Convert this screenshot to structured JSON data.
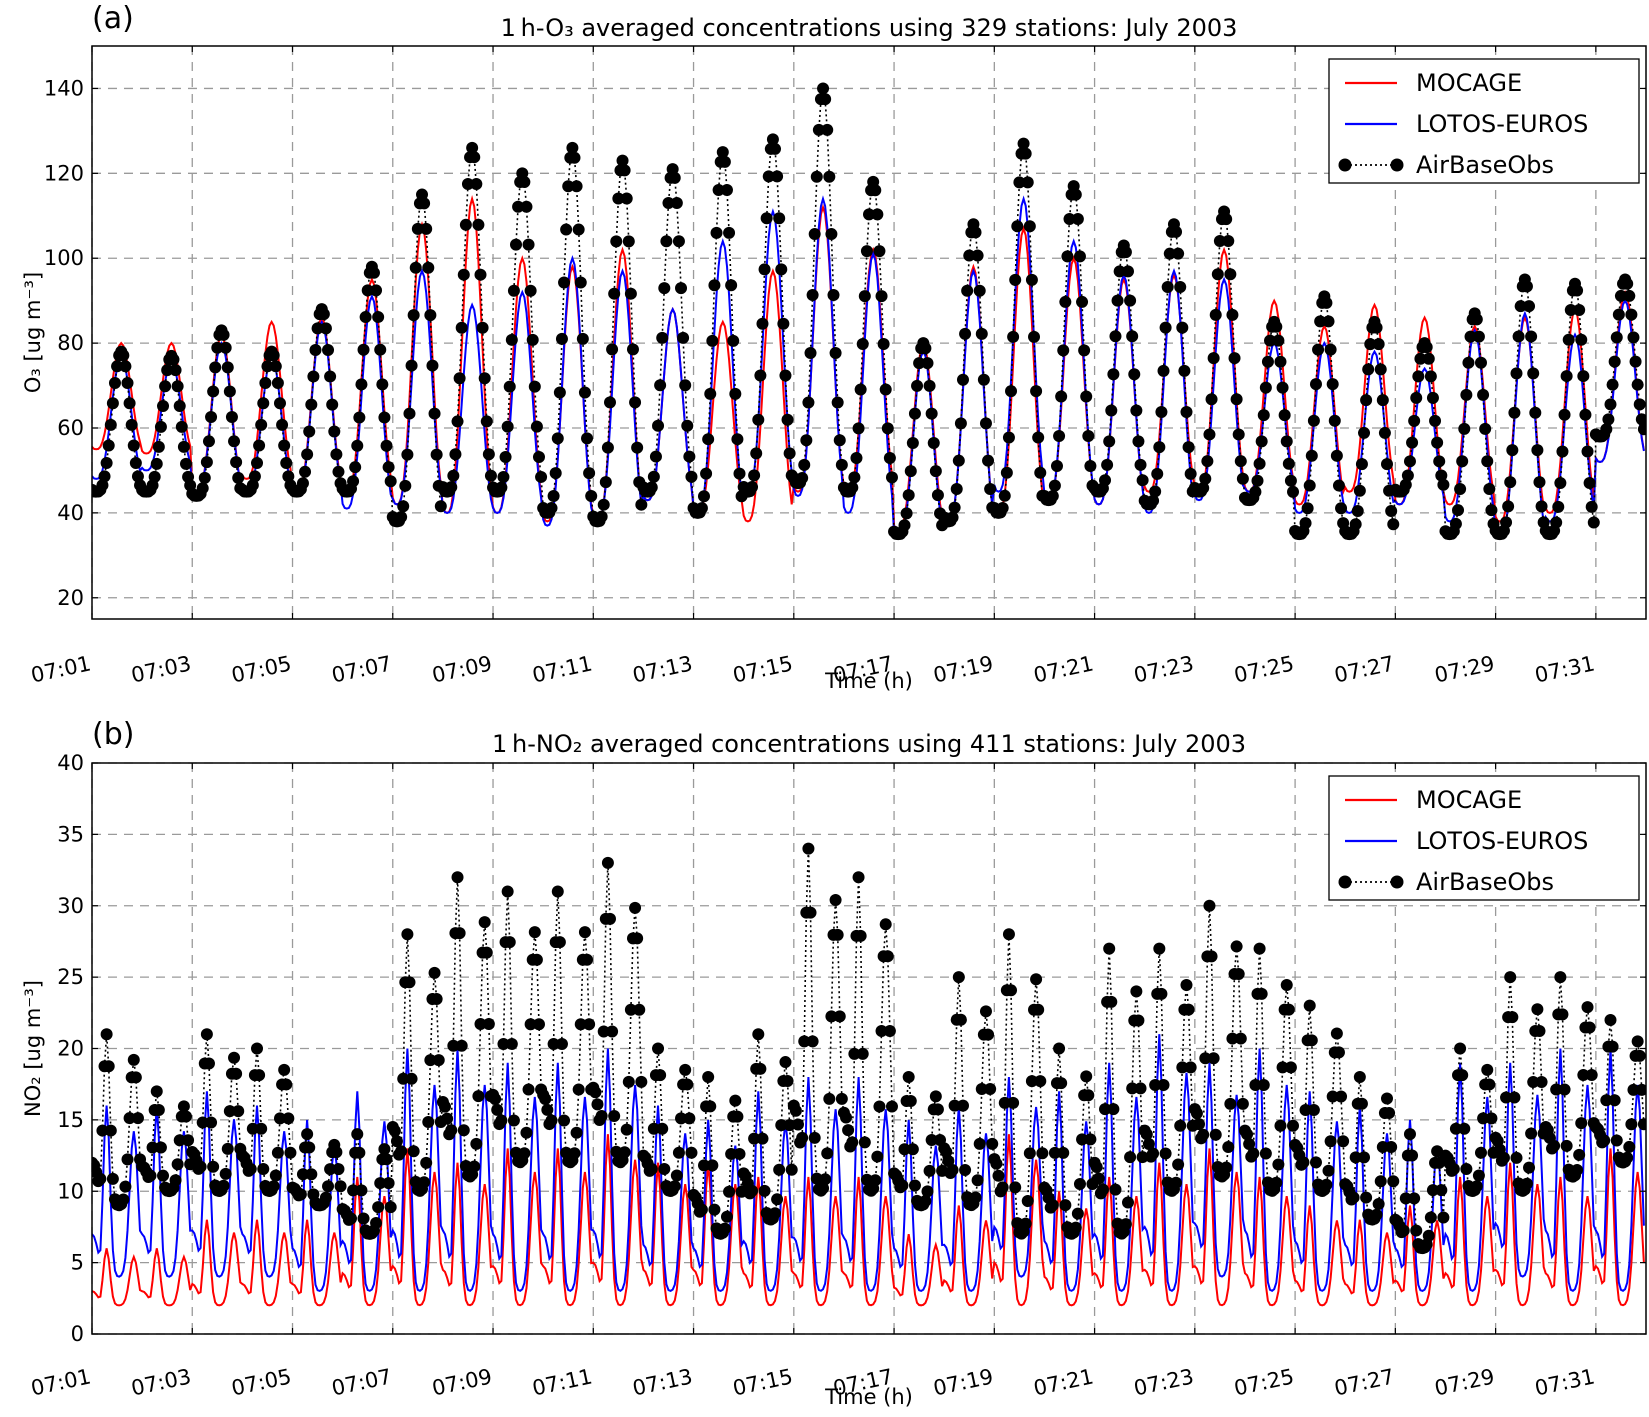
{
  "chart_data": [
    {
      "type": "line",
      "panel_label": "(a)",
      "title": "1 h-O₃ averaged concentrations using 329 stations: July 2003",
      "xlabel": "Time (h)",
      "ylabel": "O₃ [ug m⁻³]",
      "ylim": [
        15,
        150
      ],
      "yticks": [
        20,
        40,
        60,
        80,
        100,
        120,
        140
      ],
      "xlim": [
        "07:01 00h",
        "07:31 24h"
      ],
      "xticks": [
        "07:01",
        "07:03",
        "07:05",
        "07:07",
        "07:09",
        "07:11",
        "07:13",
        "07:15",
        "07:17",
        "07:19",
        "07:21",
        "07:23",
        "07:25",
        "07:27",
        "07:29",
        "07:31"
      ],
      "grid": true,
      "legend_position": "top-right",
      "days": [
        "07:01",
        "07:02",
        "07:03",
        "07:04",
        "07:05",
        "07:06",
        "07:07",
        "07:08",
        "07:09",
        "07:10",
        "07:11",
        "07:12",
        "07:13",
        "07:14",
        "07:15",
        "07:16",
        "07:17",
        "07:18",
        "07:19",
        "07:20",
        "07:21",
        "07:22",
        "07:23",
        "07:24",
        "07:25",
        "07:26",
        "07:27",
        "07:28",
        "07:29",
        "07:30",
        "07:31"
      ],
      "series": [
        {
          "name": "MOCAGE",
          "color": "#ff0000",
          "style": "line",
          "daily_min": [
            55,
            54,
            45,
            48,
            45,
            45,
            42,
            40,
            40,
            38,
            38,
            43,
            40,
            38,
            45,
            45,
            36,
            38,
            40,
            43,
            42,
            45,
            45,
            45,
            42,
            45,
            42,
            42,
            38,
            40,
            52
          ],
          "daily_max": [
            80,
            80,
            82,
            85,
            86,
            95,
            108,
            114,
            100,
            98,
            102,
            88,
            85,
            97,
            112,
            102,
            80,
            98,
            107,
            100,
            95,
            96,
            102,
            90,
            84,
            89,
            86,
            84,
            86,
            88,
            92
          ]
        },
        {
          "name": "LOTOS-EUROS",
          "color": "#0000ff",
          "style": "line",
          "daily_min": [
            48,
            50,
            45,
            45,
            44,
            41,
            42,
            40,
            40,
            37,
            38,
            43,
            40,
            45,
            44,
            40,
            34,
            38,
            45,
            43,
            42,
            40,
            43,
            45,
            40,
            40,
            42,
            38,
            34,
            38,
            52
          ],
          "daily_max": [
            77,
            76,
            80,
            77,
            85,
            91,
            97,
            89,
            92,
            100,
            97,
            88,
            104,
            111,
            114,
            101,
            78,
            97,
            114,
            104,
            96,
            97,
            95,
            80,
            80,
            78,
            74,
            83,
            87,
            82,
            90
          ]
        },
        {
          "name": "AirBaseObs",
          "color": "#000000",
          "style": "dotted-markers",
          "daily_min": [
            45,
            45,
            44,
            45,
            45,
            45,
            38,
            45,
            45,
            40,
            38,
            45,
            40,
            45,
            47,
            45,
            35,
            38,
            40,
            43,
            45,
            42,
            45,
            43,
            35,
            35,
            45,
            35,
            35,
            35,
            58
          ],
          "daily_max": [
            78,
            77,
            83,
            78,
            88,
            98,
            115,
            126,
            120,
            126,
            123,
            121,
            125,
            128,
            140,
            118,
            80,
            108,
            127,
            117,
            103,
            108,
            111,
            85,
            91,
            85,
            80,
            87,
            95,
            94,
            95
          ]
        }
      ]
    },
    {
      "type": "line",
      "panel_label": "(b)",
      "title": "1 h-NO₂ averaged concentrations using 411 stations: July 2003",
      "xlabel": "Time (h)",
      "ylabel": "NO₂ [ug m⁻³]",
      "ylim": [
        0,
        40
      ],
      "yticks": [
        0,
        5,
        10,
        15,
        20,
        25,
        30,
        35,
        40
      ],
      "xlim": [
        "07:01 00h",
        "07:31 24h"
      ],
      "xticks": [
        "07:01",
        "07:03",
        "07:05",
        "07:07",
        "07:09",
        "07:11",
        "07:13",
        "07:15",
        "07:17",
        "07:19",
        "07:21",
        "07:23",
        "07:25",
        "07:27",
        "07:29",
        "07:31"
      ],
      "grid": true,
      "legend_position": "top-right",
      "days": [
        "07:01",
        "07:02",
        "07:03",
        "07:04",
        "07:05",
        "07:06",
        "07:07",
        "07:08",
        "07:09",
        "07:10",
        "07:11",
        "07:12",
        "07:13",
        "07:14",
        "07:15",
        "07:16",
        "07:17",
        "07:18",
        "07:19",
        "07:20",
        "07:21",
        "07:22",
        "07:23",
        "07:24",
        "07:25",
        "07:26",
        "07:27",
        "07:28",
        "07:29",
        "07:30",
        "07:31"
      ],
      "series": [
        {
          "name": "MOCAGE",
          "color": "#ff0000",
          "style": "line",
          "daily_min": [
            2,
            2,
            2,
            2,
            2,
            2,
            2,
            2,
            2,
            2,
            2,
            2,
            2,
            2,
            2,
            2,
            2,
            2,
            2,
            2,
            2,
            2,
            2,
            2,
            2,
            2,
            2,
            2,
            2,
            2,
            2
          ],
          "daily_max": [
            6,
            6,
            8,
            8,
            8,
            11,
            13,
            12,
            13,
            13,
            14,
            12,
            12,
            11,
            11,
            11,
            7,
            9,
            14,
            10,
            11,
            12,
            13,
            11,
            9,
            8,
            9,
            11,
            12,
            11,
            13
          ]
        },
        {
          "name": "LOTOS-EUROS",
          "color": "#0000ff",
          "style": "line",
          "daily_min": [
            4,
            4,
            4,
            4,
            3,
            3,
            3,
            3,
            3,
            3,
            3,
            3,
            3,
            3,
            3,
            3,
            3,
            3,
            4,
            3,
            3,
            3,
            4,
            3,
            3,
            3,
            3,
            3,
            4,
            3,
            3
          ],
          "daily_max": [
            16,
            16,
            17,
            16,
            15,
            17,
            20,
            20,
            19,
            19,
            20,
            16,
            15,
            17,
            18,
            18,
            15,
            16,
            18,
            17,
            19,
            21,
            19,
            20,
            17,
            16,
            15,
            19,
            19,
            20,
            20
          ]
        },
        {
          "name": "AirBaseObs",
          "color": "#000000",
          "style": "dotted-markers",
          "daily_min": [
            9,
            10,
            10,
            10,
            9,
            7,
            10,
            11,
            12,
            12,
            12,
            10,
            7,
            8,
            10,
            10,
            9,
            9,
            7,
            7,
            7,
            10,
            11,
            10,
            10,
            8,
            6,
            10,
            10,
            11,
            12
          ],
          "daily_max": [
            21,
            17,
            21,
            20,
            14,
            14,
            28,
            32,
            31,
            31,
            33,
            20,
            18,
            21,
            34,
            32,
            18,
            25,
            28,
            20,
            27,
            27,
            30,
            27,
            23,
            18,
            14,
            20,
            25,
            25,
            22
          ]
        }
      ]
    }
  ]
}
